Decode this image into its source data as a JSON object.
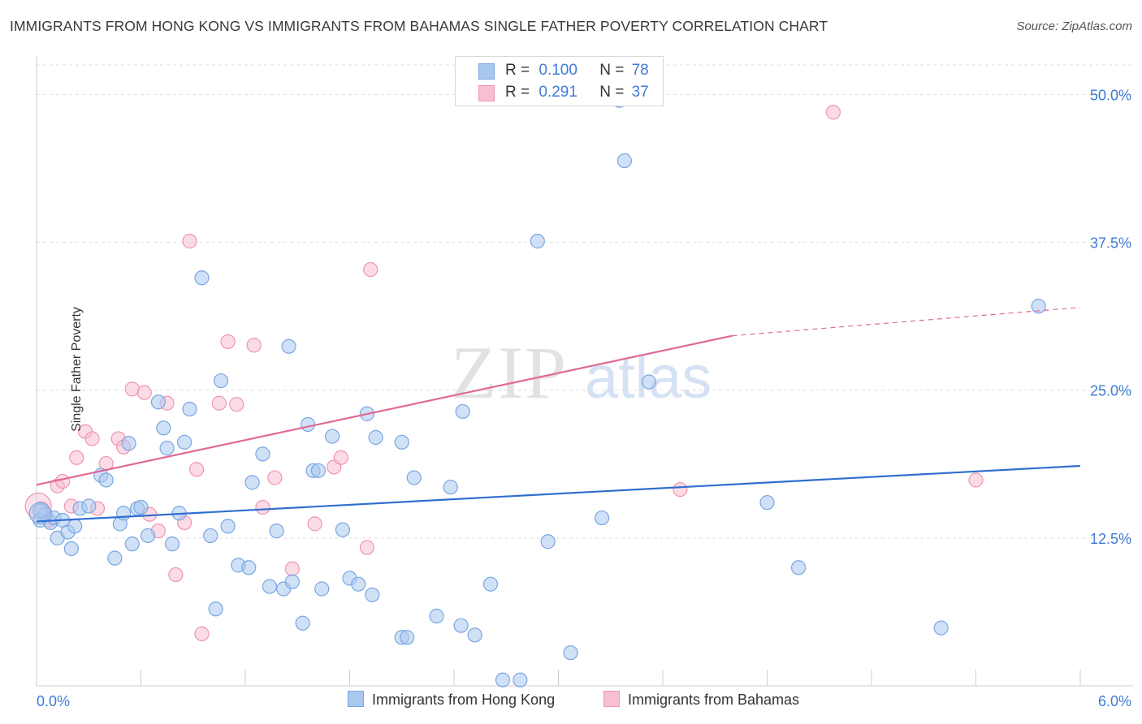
{
  "title": "IMMIGRANTS FROM HONG KONG VS IMMIGRANTS FROM BAHAMAS SINGLE FATHER POVERTY CORRELATION CHART",
  "source": "Source: ZipAtlas.com",
  "watermark": {
    "part1": "ZIP",
    "part2": "atlas"
  },
  "legend": {
    "rows": [
      {
        "r_label": "R =",
        "r_value": "0.100",
        "n_label": "N =",
        "n_value": "78"
      },
      {
        "r_label": "R =",
        "r_value": "0.291",
        "n_label": "N =",
        "n_value": "37"
      }
    ]
  },
  "bottom_legend": [
    "Immigrants from Hong Kong",
    "Immigrants from Bahamas"
  ],
  "colors": {
    "hk_fill": "#a9c8f0",
    "hk_stroke": "#7aa6e0",
    "hk_line": "#2f6fcf",
    "bs_fill": "#f7bfd0",
    "bs_stroke": "#ee95b2",
    "bs_line": "#e06a94",
    "axis_text": "#3f7bd6",
    "grid": "#dedede"
  },
  "chart_data": {
    "type": "scatter",
    "title": "IMMIGRANTS FROM HONG KONG VS IMMIGRANTS FROM BAHAMAS SINGLE FATHER POVERTY CORRELATION CHART",
    "xlabel": "",
    "ylabel": "Single Father Poverty",
    "xlim": [
      0,
      6.0
    ],
    "ylim": [
      0,
      52.5
    ],
    "x_tick_labels": [
      "0.0%",
      "6.0%"
    ],
    "y_ticks": [
      12.5,
      25.0,
      37.5,
      50.0
    ],
    "y_tick_labels": [
      "12.5%",
      "25.0%",
      "37.5%",
      "50.0%"
    ],
    "grid": true,
    "legend_position": "top-center",
    "series": [
      {
        "name": "Immigrants from Hong Kong",
        "trend": {
          "x": [
            0,
            6.0
          ],
          "y": [
            13.9,
            18.6
          ]
        },
        "points": [
          [
            0.02,
            14.0
          ],
          [
            0.05,
            14.5
          ],
          [
            0.08,
            13.8
          ],
          [
            0.1,
            14.2
          ],
          [
            0.12,
            12.5
          ],
          [
            0.15,
            14.0
          ],
          [
            0.18,
            13.0
          ],
          [
            0.2,
            11.6
          ],
          [
            0.22,
            13.5
          ],
          [
            0.25,
            15.0
          ],
          [
            0.37,
            17.8
          ],
          [
            0.4,
            17.4
          ],
          [
            0.45,
            10.8
          ],
          [
            0.48,
            13.7
          ],
          [
            0.5,
            14.6
          ],
          [
            0.53,
            20.5
          ],
          [
            0.55,
            12.0
          ],
          [
            0.58,
            15.0
          ],
          [
            0.6,
            15.1
          ],
          [
            0.64,
            12.7
          ],
          [
            0.7,
            24.0
          ],
          [
            0.73,
            21.8
          ],
          [
            0.75,
            20.1
          ],
          [
            0.78,
            12.0
          ],
          [
            0.82,
            14.6
          ],
          [
            0.85,
            20.6
          ],
          [
            0.88,
            23.4
          ],
          [
            0.95,
            34.5
          ],
          [
            1.0,
            12.7
          ],
          [
            1.03,
            6.5
          ],
          [
            1.06,
            25.8
          ],
          [
            1.1,
            13.5
          ],
          [
            1.16,
            10.2
          ],
          [
            1.22,
            10.0
          ],
          [
            1.24,
            17.2
          ],
          [
            1.3,
            19.6
          ],
          [
            1.34,
            8.4
          ],
          [
            1.38,
            13.1
          ],
          [
            1.42,
            8.2
          ],
          [
            1.45,
            28.7
          ],
          [
            1.47,
            8.8
          ],
          [
            1.53,
            5.3
          ],
          [
            1.56,
            22.1
          ],
          [
            1.59,
            18.2
          ],
          [
            1.62,
            18.2
          ],
          [
            1.64,
            8.2
          ],
          [
            1.7,
            21.1
          ],
          [
            1.76,
            13.2
          ],
          [
            1.8,
            9.1
          ],
          [
            1.85,
            8.6
          ],
          [
            1.9,
            23.0
          ],
          [
            1.93,
            7.7
          ],
          [
            1.95,
            21.0
          ],
          [
            2.1,
            20.6
          ],
          [
            2.1,
            4.1
          ],
          [
            2.13,
            4.1
          ],
          [
            2.17,
            17.6
          ],
          [
            2.3,
            5.9
          ],
          [
            2.38,
            16.8
          ],
          [
            2.44,
            5.1
          ],
          [
            2.45,
            23.2
          ],
          [
            2.52,
            4.3
          ],
          [
            2.61,
            8.6
          ],
          [
            2.68,
            0.5
          ],
          [
            2.78,
            0.5
          ],
          [
            2.88,
            37.6
          ],
          [
            2.94,
            12.2
          ],
          [
            3.07,
            2.8
          ],
          [
            3.25,
            14.2
          ],
          [
            3.35,
            49.5
          ],
          [
            3.38,
            44.4
          ],
          [
            3.52,
            25.7
          ],
          [
            4.2,
            15.5
          ],
          [
            4.38,
            10.0
          ],
          [
            5.2,
            4.9
          ],
          [
            5.76,
            32.1
          ],
          [
            0.02,
            14.8
          ],
          [
            0.3,
            15.2
          ]
        ]
      },
      {
        "name": "Immigrants from Bahamas",
        "trend": {
          "x": [
            0,
            4.0
          ],
          "y": [
            17.0,
            29.6
          ]
        },
        "trend_dashed": {
          "x": [
            4.0,
            6.0
          ],
          "y": [
            29.6,
            32.0
          ]
        },
        "points": [
          [
            0.03,
            15.0
          ],
          [
            0.07,
            14.0
          ],
          [
            0.12,
            16.9
          ],
          [
            0.15,
            17.3
          ],
          [
            0.2,
            15.2
          ],
          [
            0.23,
            19.3
          ],
          [
            0.28,
            21.5
          ],
          [
            0.32,
            20.9
          ],
          [
            0.35,
            15.0
          ],
          [
            0.4,
            18.8
          ],
          [
            0.47,
            20.9
          ],
          [
            0.5,
            20.2
          ],
          [
            0.55,
            25.1
          ],
          [
            0.62,
            24.8
          ],
          [
            0.65,
            14.5
          ],
          [
            0.7,
            13.1
          ],
          [
            0.75,
            23.9
          ],
          [
            0.8,
            9.4
          ],
          [
            0.85,
            13.8
          ],
          [
            0.88,
            37.6
          ],
          [
            0.92,
            18.3
          ],
          [
            0.95,
            4.4
          ],
          [
            1.05,
            23.9
          ],
          [
            1.1,
            29.1
          ],
          [
            1.15,
            23.8
          ],
          [
            1.25,
            28.8
          ],
          [
            1.3,
            15.1
          ],
          [
            1.37,
            17.6
          ],
          [
            1.47,
            9.9
          ],
          [
            1.6,
            13.7
          ],
          [
            1.71,
            18.5
          ],
          [
            1.75,
            19.3
          ],
          [
            1.9,
            11.7
          ],
          [
            1.92,
            35.2
          ],
          [
            3.7,
            16.6
          ],
          [
            4.58,
            48.5
          ],
          [
            5.4,
            17.4
          ]
        ]
      }
    ]
  }
}
